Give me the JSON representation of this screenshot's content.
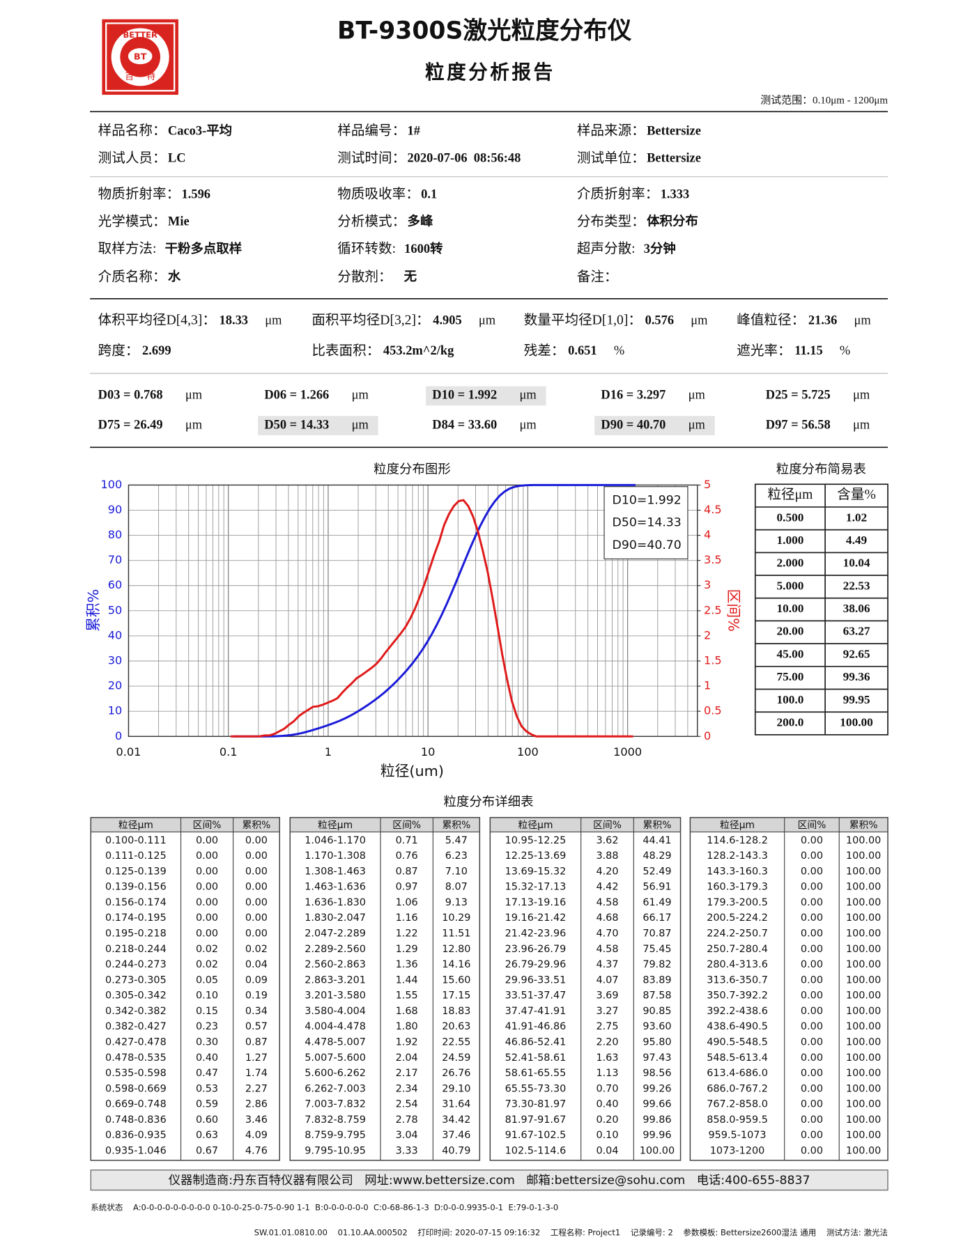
{
  "header": {
    "title": "BT-9300S激光粒度分布仪",
    "subtitle": "粒度分析报告",
    "range": "测试范围：0.10μm - 1200μm",
    "logo": {
      "ring": "BETTER",
      "mark": "BT",
      "left": "百",
      "right": "特"
    }
  },
  "info": [
    [
      {
        "label": "样品名称：",
        "value": "Caco3-平均"
      },
      {
        "label": "样品编号：",
        "value": "1#"
      },
      {
        "label": "样品来源：",
        "value": "Bettersize"
      }
    ],
    [
      {
        "label": "测试人员：",
        "value": "LC"
      },
      {
        "label": "测试时间：",
        "value": "2020-07-06  08:56:48"
      },
      {
        "label": "测试单位：",
        "value": "Bettersize"
      }
    ],
    [
      {
        "label": "物质折射率：",
        "value": "1.596"
      },
      {
        "label": "物质吸收率：",
        "value": "0.1"
      },
      {
        "label": "介质折射率：",
        "value": "1.333"
      }
    ],
    [
      {
        "label": "光学模式：",
        "value": "Mie"
      },
      {
        "label": "分析模式：",
        "value": "多峰"
      },
      {
        "label": "分布类型：",
        "value": "体积分布"
      }
    ],
    [
      {
        "label": "取样方法:  ",
        "value": "干粉多点取样"
      },
      {
        "label": "循环转数:  ",
        "value": "1600转"
      },
      {
        "label": "超声分散:  ",
        "value": "3分钟"
      }
    ],
    [
      {
        "label": "介质名称：",
        "value": "水"
      },
      {
        "label": "分散剂：   ",
        "value": "无"
      },
      {
        "label": "备注："
      }
    ]
  ],
  "stats": [
    [
      {
        "label": "体积平均径D[4,3]：",
        "value": "18.33",
        "unit": "μm"
      },
      {
        "label": "面积平均径D[3,2]：",
        "value": "4.905",
        "unit": "μm"
      },
      {
        "label": "数量平均径D[1,0]：",
        "value": "0.576",
        "unit": "μm"
      },
      {
        "label": "峰值粒径：",
        "value": "21.36",
        "unit": "μm"
      }
    ],
    [
      {
        "label": "跨度：",
        "value": "2.699"
      },
      {
        "label": "比表面积：",
        "value": "453.2m^2/kg"
      },
      {
        "label": "残差：",
        "value": "0.651",
        "unit": "%"
      },
      {
        "label": "遮光率：",
        "value": "11.15",
        "unit": "%"
      }
    ]
  ],
  "dvalues": [
    [
      {
        "text": "D03 = 0.768",
        "unit": "μm"
      },
      {
        "text": "D06 = 1.266",
        "unit": "μm"
      },
      {
        "text": "D10 = 1.992",
        "unit": "μm",
        "highlight": true
      },
      {
        "text": "D16 = 3.297",
        "unit": "μm"
      },
      {
        "text": "D25 = 5.725",
        "unit": "μm"
      }
    ],
    [
      {
        "text": "D75 = 26.49",
        "unit": "μm"
      },
      {
        "text": "D50 = 14.33",
        "unit": "μm",
        "highlight": true
      },
      {
        "text": "D84 = 33.60",
        "unit": "μm"
      },
      {
        "text": "D90 = 40.70",
        "unit": "μm",
        "highlight": true
      },
      {
        "text": "D97 = 56.58",
        "unit": "μm"
      }
    ]
  ],
  "chart": {
    "type": "line",
    "title": "粒度分布图形",
    "x_label": "粒径(um)",
    "y_label": "累积%",
    "y2_label": "区间%",
    "log_x": true,
    "grid": true,
    "xlim": [
      0.01,
      5000
    ],
    "xticks": [
      0.01,
      0.1,
      1,
      10,
      100,
      1000
    ],
    "ylim": [
      0,
      100
    ],
    "yticks": [
      0,
      10,
      20,
      30,
      40,
      50,
      60,
      70,
      80,
      90,
      100
    ],
    "y2lim": [
      0,
      5
    ],
    "y2ticks": [
      0,
      0.5,
      1,
      1.5,
      2,
      2.5,
      3,
      3.5,
      4,
      4.5,
      5
    ],
    "cumulative_color": "#1b1bd8",
    "interval_color": "#e01a1a",
    "annotations": [
      "D10=1.992",
      "D50=14.33",
      "D90=40.70"
    ]
  },
  "simple_table": {
    "title": "粒度分布简易表",
    "headers": [
      "粒径μm",
      "含量%"
    ],
    "rows": [
      [
        "0.500",
        "1.02"
      ],
      [
        "1.000",
        "4.49"
      ],
      [
        "2.000",
        "10.04"
      ],
      [
        "5.000",
        "22.53"
      ],
      [
        "10.00",
        "38.06"
      ],
      [
        "20.00",
        "63.27"
      ],
      [
        "45.00",
        "92.65"
      ],
      [
        "75.00",
        "99.36"
      ],
      [
        "100.0",
        "99.95"
      ],
      [
        "200.0",
        "100.00"
      ]
    ]
  },
  "detail_table": {
    "title": "粒度分布详细表",
    "headers": [
      "粒径μm",
      "区间%",
      "累积%"
    ],
    "rows": [
      [
        "0.100-0.111",
        "0.00",
        "0.00"
      ],
      [
        "0.111-0.125",
        "0.00",
        "0.00"
      ],
      [
        "0.125-0.139",
        "0.00",
        "0.00"
      ],
      [
        "0.139-0.156",
        "0.00",
        "0.00"
      ],
      [
        "0.156-0.174",
        "0.00",
        "0.00"
      ],
      [
        "0.174-0.195",
        "0.00",
        "0.00"
      ],
      [
        "0.195-0.218",
        "0.00",
        "0.00"
      ],
      [
        "0.218-0.244",
        "0.02",
        "0.02"
      ],
      [
        "0.244-0.273",
        "0.02",
        "0.04"
      ],
      [
        "0.273-0.305",
        "0.05",
        "0.09"
      ],
      [
        "0.305-0.342",
        "0.10",
        "0.19"
      ],
      [
        "0.342-0.382",
        "0.15",
        "0.34"
      ],
      [
        "0.382-0.427",
        "0.23",
        "0.57"
      ],
      [
        "0.427-0.478",
        "0.30",
        "0.87"
      ],
      [
        "0.478-0.535",
        "0.40",
        "1.27"
      ],
      [
        "0.535-0.598",
        "0.47",
        "1.74"
      ],
      [
        "0.598-0.669",
        "0.53",
        "2.27"
      ],
      [
        "0.669-0.748",
        "0.59",
        "2.86"
      ],
      [
        "0.748-0.836",
        "0.60",
        "3.46"
      ],
      [
        "0.836-0.935",
        "0.63",
        "4.09"
      ],
      [
        "0.935-1.046",
        "0.67",
        "4.76"
      ],
      [
        "1.046-1.170",
        "0.71",
        "5.47"
      ],
      [
        "1.170-1.308",
        "0.76",
        "6.23"
      ],
      [
        "1.308-1.463",
        "0.87",
        "7.10"
      ],
      [
        "1.463-1.636",
        "0.97",
        "8.07"
      ],
      [
        "1.636-1.830",
        "1.06",
        "9.13"
      ],
      [
        "1.830-2.047",
        "1.16",
        "10.29"
      ],
      [
        "2.047-2.289",
        "1.22",
        "11.51"
      ],
      [
        "2.289-2.560",
        "1.29",
        "12.80"
      ],
      [
        "2.560-2.863",
        "1.36",
        "14.16"
      ],
      [
        "2.863-3.201",
        "1.44",
        "15.60"
      ],
      [
        "3.201-3.580",
        "1.55",
        "17.15"
      ],
      [
        "3.580-4.004",
        "1.68",
        "18.83"
      ],
      [
        "4.004-4.478",
        "1.80",
        "20.63"
      ],
      [
        "4.478-5.007",
        "1.92",
        "22.55"
      ],
      [
        "5.007-5.600",
        "2.04",
        "24.59"
      ],
      [
        "5.600-6.262",
        "2.17",
        "26.76"
      ],
      [
        "6.262-7.003",
        "2.34",
        "29.10"
      ],
      [
        "7.003-7.832",
        "2.54",
        "31.64"
      ],
      [
        "7.832-8.759",
        "2.78",
        "34.42"
      ],
      [
        "8.759-9.795",
        "3.04",
        "37.46"
      ],
      [
        "9.795-10.95",
        "3.33",
        "40.79"
      ],
      [
        "10.95-12.25",
        "3.62",
        "44.41"
      ],
      [
        "12.25-13.69",
        "3.88",
        "48.29"
      ],
      [
        "13.69-15.32",
        "4.20",
        "52.49"
      ],
      [
        "15.32-17.13",
        "4.42",
        "56.91"
      ],
      [
        "17.13-19.16",
        "4.58",
        "61.49"
      ],
      [
        "19.16-21.42",
        "4.68",
        "66.17"
      ],
      [
        "21.42-23.96",
        "4.70",
        "70.87"
      ],
      [
        "23.96-26.79",
        "4.58",
        "75.45"
      ],
      [
        "26.79-29.96",
        "4.37",
        "79.82"
      ],
      [
        "29.96-33.51",
        "4.07",
        "83.89"
      ],
      [
        "33.51-37.47",
        "3.69",
        "87.58"
      ],
      [
        "37.47-41.91",
        "3.27",
        "90.85"
      ],
      [
        "41.91-46.86",
        "2.75",
        "93.60"
      ],
      [
        "46.86-52.41",
        "2.20",
        "95.80"
      ],
      [
        "52.41-58.61",
        "1.63",
        "97.43"
      ],
      [
        "58.61-65.55",
        "1.13",
        "98.56"
      ],
      [
        "65.55-73.30",
        "0.70",
        "99.26"
      ],
      [
        "73.30-81.97",
        "0.40",
        "99.66"
      ],
      [
        "81.97-91.67",
        "0.20",
        "99.86"
      ],
      [
        "91.67-102.5",
        "0.10",
        "99.96"
      ],
      [
        "102.5-114.6",
        "0.04",
        "100.00"
      ],
      [
        "114.6-128.2",
        "0.00",
        "100.00"
      ],
      [
        "128.2-143.3",
        "0.00",
        "100.00"
      ],
      [
        "143.3-160.3",
        "0.00",
        "100.00"
      ],
      [
        "160.3-179.3",
        "0.00",
        "100.00"
      ],
      [
        "179.3-200.5",
        "0.00",
        "100.00"
      ],
      [
        "200.5-224.2",
        "0.00",
        "100.00"
      ],
      [
        "224.2-250.7",
        "0.00",
        "100.00"
      ],
      [
        "250.7-280.4",
        "0.00",
        "100.00"
      ],
      [
        "280.4-313.6",
        "0.00",
        "100.00"
      ],
      [
        "313.6-350.7",
        "0.00",
        "100.00"
      ],
      [
        "350.7-392.2",
        "0.00",
        "100.00"
      ],
      [
        "392.2-438.6",
        "0.00",
        "100.00"
      ],
      [
        "438.6-490.5",
        "0.00",
        "100.00"
      ],
      [
        "490.5-548.5",
        "0.00",
        "100.00"
      ],
      [
        "548.5-613.4",
        "0.00",
        "100.00"
      ],
      [
        "613.4-686.0",
        "0.00",
        "100.00"
      ],
      [
        "686.0-767.2",
        "0.00",
        "100.00"
      ],
      [
        "767.2-858.0",
        "0.00",
        "100.00"
      ],
      [
        "858.0-959.5",
        "0.00",
        "100.00"
      ],
      [
        "959.5-1073",
        "0.00",
        "100.00"
      ],
      [
        "1073-1200",
        "0.00",
        "100.00"
      ]
    ]
  },
  "footer": {
    "maker": "仪器制造商:丹东百特仪器有限公司   网址:www.bettersize.com   邮箱:bettersize@sohu.com   电话:400-655-8837",
    "status": "系统状态    A:0-0-0-0-0-0-0-0-0 0-10-0-25-0-75-0-90 1-1  B:0-0-0-0-0-0  C:0-68-86-1-3  D:0-0-0.9935-0-1  E:79-0-1-3-0",
    "print": "SW.01.01.0810.00    01.10.AA.000502    打印时间: 2020-07-15 09:16:32    工程名称: Project1    记录编号: 2    参数模板: Bettersize2600湿法 通用    测试方法: 激光法"
  }
}
